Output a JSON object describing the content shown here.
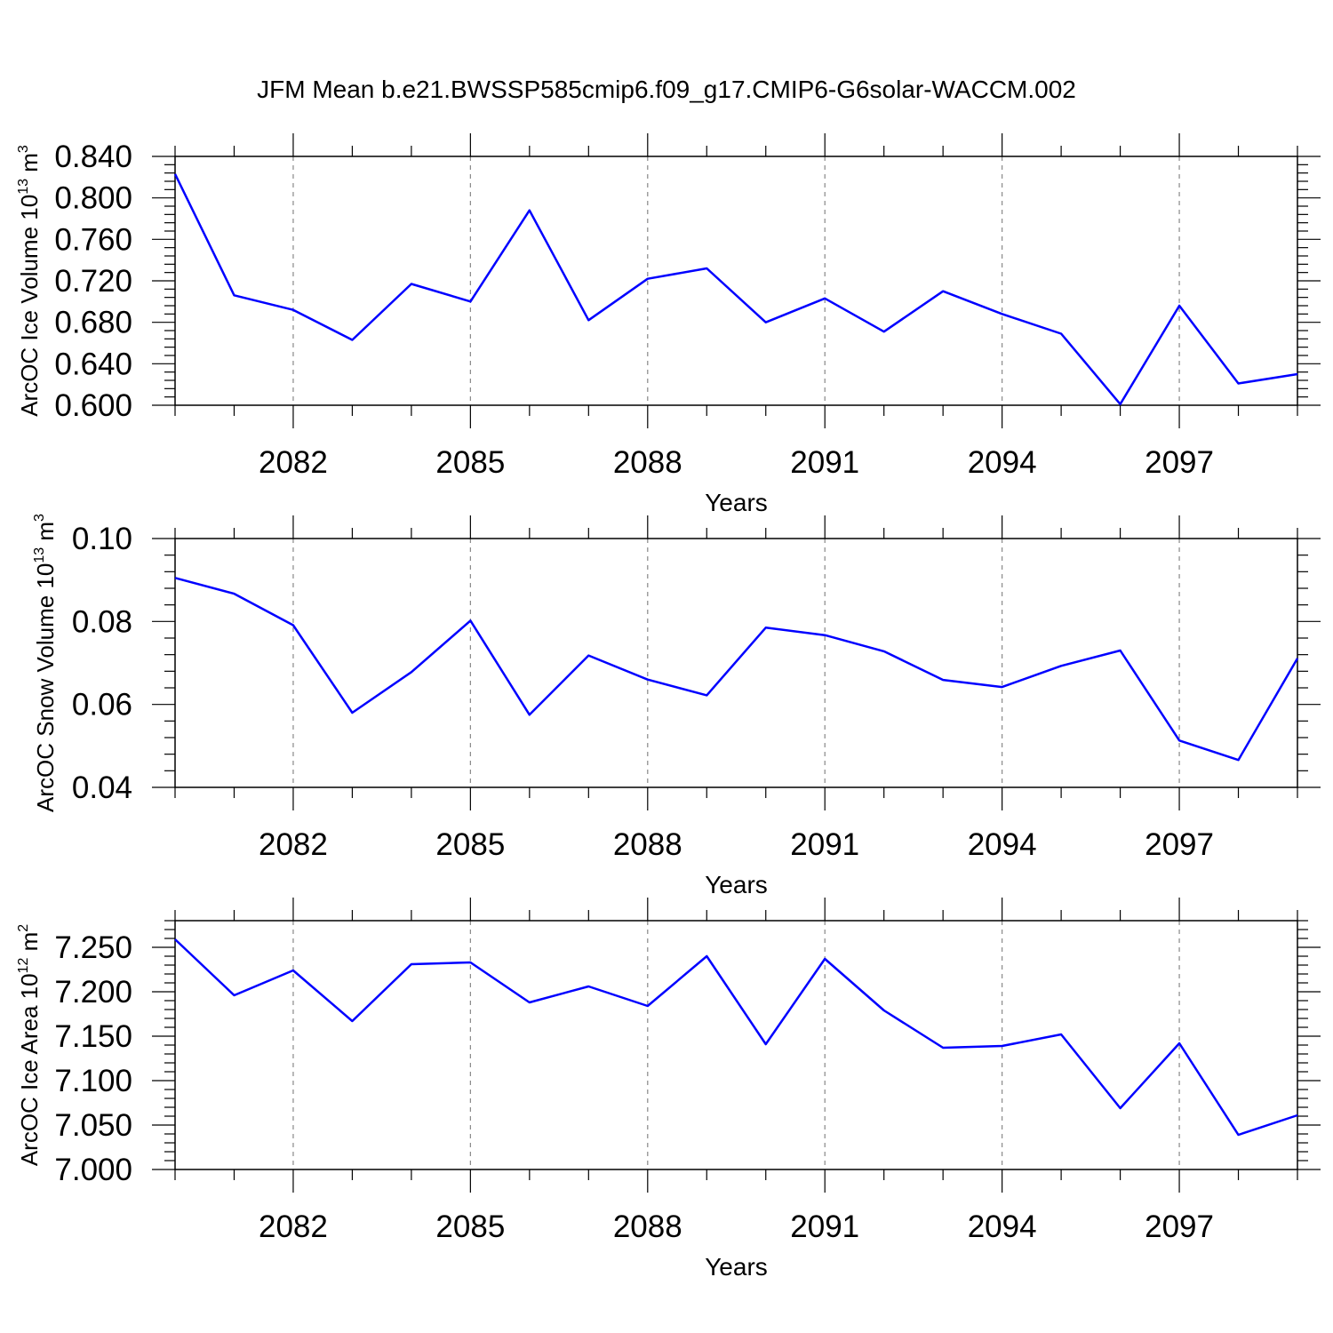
{
  "figure": {
    "title": "JFM Mean b.e21.BWSSP585cmip6.f09_g17.CMIP6-G6solar-WACCM.002"
  },
  "chart_data": [
    {
      "type": "line",
      "title": "",
      "ylabel": {
        "text": "ArcOC Ice Volume 10",
        "exp": "13",
        "unit": " m",
        "unit_exp": "3"
      },
      "xlabel": "Years",
      "color": "#0000ff",
      "grid": "vertical dashed at major ticks",
      "x": [
        2080,
        2081,
        2082,
        2083,
        2084,
        2085,
        2086,
        2087,
        2088,
        2089,
        2090,
        2091,
        2092,
        2093,
        2094,
        2095,
        2096,
        2097,
        2098,
        2099
      ],
      "values": [
        0.823,
        0.706,
        0.692,
        0.663,
        0.717,
        0.7,
        0.788,
        0.682,
        0.722,
        0.732,
        0.68,
        0.703,
        0.671,
        0.71,
        0.688,
        0.669,
        0.601,
        0.696,
        0.621,
        0.63
      ],
      "xlim": [
        2080,
        2099
      ],
      "ylim": [
        0.6,
        0.84
      ],
      "xticks": [
        "2082",
        "2085",
        "2088",
        "2091",
        "2094",
        "2097"
      ],
      "yticks": [
        "0.600",
        "0.640",
        "0.680",
        "0.720",
        "0.760",
        "0.800",
        "0.840"
      ]
    },
    {
      "type": "line",
      "title": "",
      "ylabel": {
        "text": "ArcOC Snow Volume 10",
        "exp": "13",
        "unit": " m",
        "unit_exp": "3"
      },
      "xlabel": "Years",
      "color": "#0000ff",
      "grid": "vertical dashed at major ticks",
      "x": [
        2080,
        2081,
        2082,
        2083,
        2084,
        2085,
        2086,
        2087,
        2088,
        2089,
        2090,
        2091,
        2092,
        2093,
        2094,
        2095,
        2096,
        2097,
        2098,
        2099
      ],
      "values": [
        0.0905,
        0.0867,
        0.0791,
        0.058,
        0.0678,
        0.0802,
        0.0575,
        0.0718,
        0.066,
        0.0622,
        0.0785,
        0.0767,
        0.0728,
        0.0659,
        0.0642,
        0.0693,
        0.073,
        0.0513,
        0.0466,
        0.0711
      ],
      "xlim": [
        2080,
        2099
      ],
      "ylim": [
        0.04,
        0.1
      ],
      "xticks": [
        "2082",
        "2085",
        "2088",
        "2091",
        "2094",
        "2097"
      ],
      "yticks": [
        "0.04",
        "0.06",
        "0.08",
        "0.10"
      ]
    },
    {
      "type": "line",
      "title": "",
      "ylabel": {
        "text": "ArcOC Ice Area 10",
        "exp": "12",
        "unit": " m",
        "unit_exp": "2"
      },
      "xlabel": "Years",
      "color": "#0000ff",
      "grid": "vertical dashed at major ticks",
      "x": [
        2080,
        2081,
        2082,
        2083,
        2084,
        2085,
        2086,
        2087,
        2088,
        2089,
        2090,
        2091,
        2092,
        2093,
        2094,
        2095,
        2096,
        2097,
        2098,
        2099
      ],
      "values": [
        7.259,
        7.196,
        7.224,
        7.167,
        7.231,
        7.233,
        7.188,
        7.206,
        7.184,
        7.24,
        7.141,
        7.237,
        7.179,
        7.137,
        7.139,
        7.152,
        7.069,
        7.142,
        7.039,
        7.061
      ],
      "xlim": [
        2080,
        2099
      ],
      "ylim": [
        7.0,
        7.28
      ],
      "xticks": [
        "2082",
        "2085",
        "2088",
        "2091",
        "2094",
        "2097"
      ],
      "yticks": [
        "7.000",
        "7.050",
        "7.100",
        "7.150",
        "7.200",
        "7.250"
      ]
    }
  ]
}
